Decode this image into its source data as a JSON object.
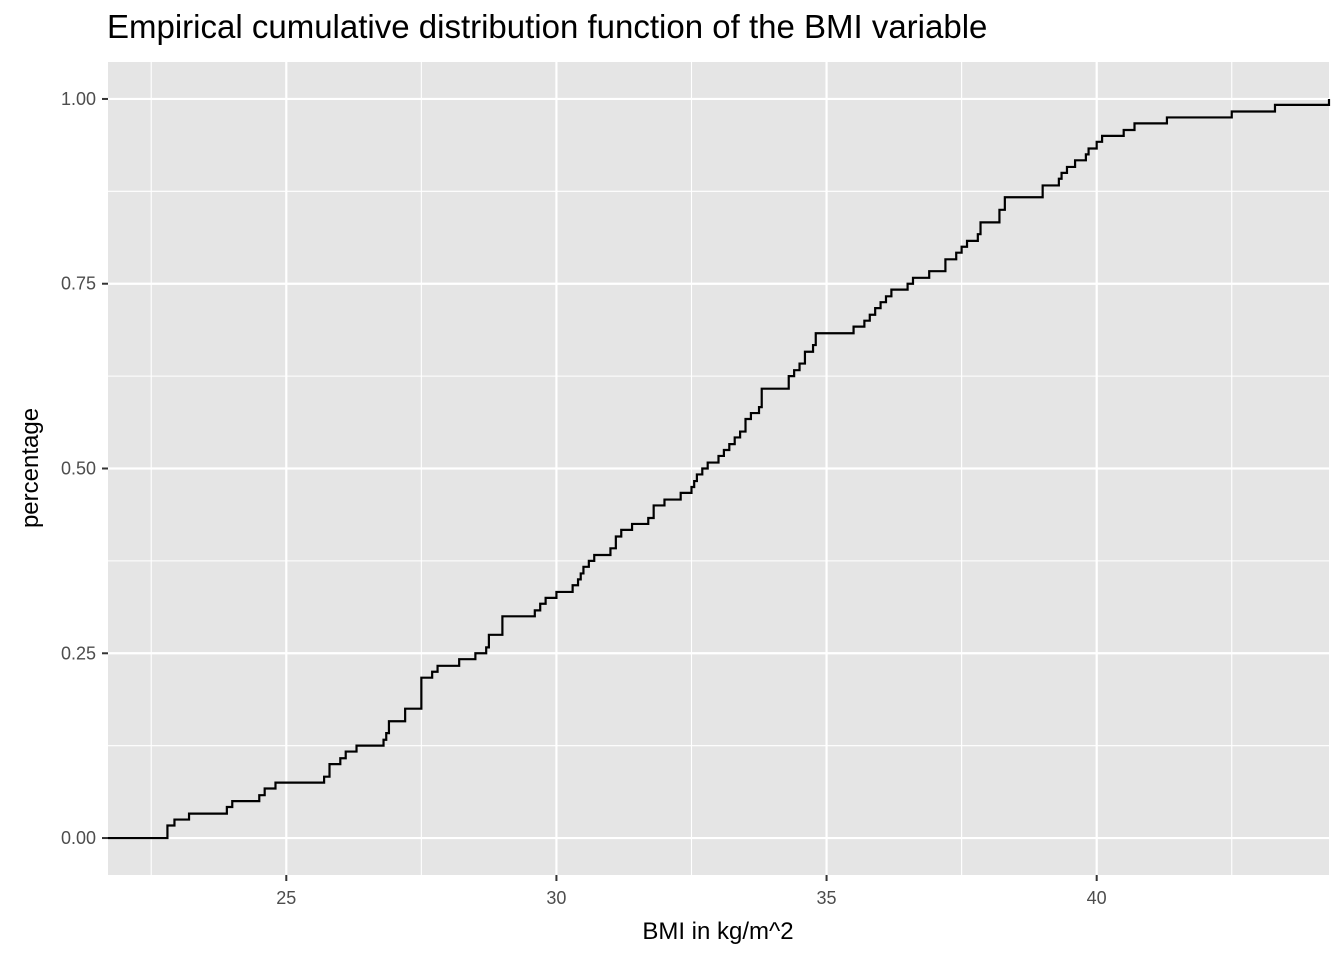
{
  "chart_data": {
    "type": "line",
    "step": true,
    "title": "Empirical cumulative distribution function of the BMI variable",
    "xlabel": "BMI in kg/m^2",
    "ylabel": "percentage",
    "xlim": [
      21.7,
      44.3
    ],
    "ylim": [
      -0.05,
      1.05
    ],
    "x_ticks": [
      25,
      30,
      35,
      40
    ],
    "x_tick_labels": [
      "25",
      "30",
      "35",
      "40"
    ],
    "x_minor_ticks": [
      22.5,
      27.5,
      32.5,
      37.5,
      42.5
    ],
    "y_ticks": [
      0,
      0.25,
      0.5,
      0.75,
      1
    ],
    "y_tick_labels": [
      "0.00",
      "0.25",
      "0.50",
      "0.75",
      "1.00"
    ],
    "y_minor_ticks": [
      0.125,
      0.375,
      0.625,
      0.875
    ],
    "grid": true,
    "line_color": "#000000",
    "panel_background": "#e5e5e5",
    "grid_color": "#ffffff",
    "series": [
      {
        "x": [
          21.7,
          22.8,
          22.93,
          23.2,
          23.9,
          24.0,
          24.5,
          24.6,
          24.8,
          25.7,
          25.8,
          26.0,
          26.1,
          26.3,
          26.8,
          26.85,
          26.9,
          27.2,
          27.5,
          27.7,
          27.8,
          28.2,
          28.5,
          28.7,
          28.75,
          29.0,
          29.6,
          29.7,
          29.8,
          30.0,
          30.3,
          30.4,
          30.45,
          30.5,
          30.6,
          30.7,
          31.0,
          31.1,
          31.2,
          31.4,
          31.7,
          31.8,
          32.0,
          32.3,
          32.5,
          32.55,
          32.6,
          32.7,
          32.8,
          33.0,
          33.1,
          33.2,
          33.3,
          33.4,
          33.5,
          33.6,
          33.75,
          33.8,
          34.3,
          34.4,
          34.5,
          34.6,
          34.75,
          34.8,
          35.5,
          35.7,
          35.8,
          35.9,
          36.0,
          36.1,
          36.2,
          36.5,
          36.6,
          36.9,
          37.2,
          37.4,
          37.5,
          37.6,
          37.8,
          37.85,
          38.2,
          38.3,
          39.0,
          39.3,
          39.35,
          39.45,
          39.6,
          39.8,
          39.85,
          40.0,
          40.1,
          40.5,
          40.7,
          41.3,
          42.5,
          43.3,
          44.3
        ],
        "y": [
          0.0,
          0.017,
          0.025,
          0.033,
          0.042,
          0.05,
          0.058,
          0.067,
          0.075,
          0.083,
          0.1,
          0.108,
          0.117,
          0.125,
          0.133,
          0.142,
          0.158,
          0.175,
          0.217,
          0.225,
          0.233,
          0.242,
          0.25,
          0.258,
          0.275,
          0.3,
          0.308,
          0.317,
          0.325,
          0.333,
          0.342,
          0.35,
          0.358,
          0.367,
          0.375,
          0.383,
          0.392,
          0.408,
          0.417,
          0.425,
          0.433,
          0.45,
          0.458,
          0.467,
          0.475,
          0.483,
          0.492,
          0.5,
          0.508,
          0.517,
          0.525,
          0.533,
          0.542,
          0.55,
          0.567,
          0.575,
          0.583,
          0.608,
          0.625,
          0.633,
          0.642,
          0.658,
          0.667,
          0.683,
          0.692,
          0.7,
          0.708,
          0.717,
          0.725,
          0.733,
          0.742,
          0.75,
          0.758,
          0.767,
          0.783,
          0.792,
          0.8,
          0.808,
          0.817,
          0.833,
          0.85,
          0.867,
          0.883,
          0.892,
          0.9,
          0.908,
          0.917,
          0.925,
          0.933,
          0.942,
          0.95,
          0.958,
          0.967,
          0.975,
          0.983,
          0.992,
          1.0
        ]
      }
    ]
  }
}
